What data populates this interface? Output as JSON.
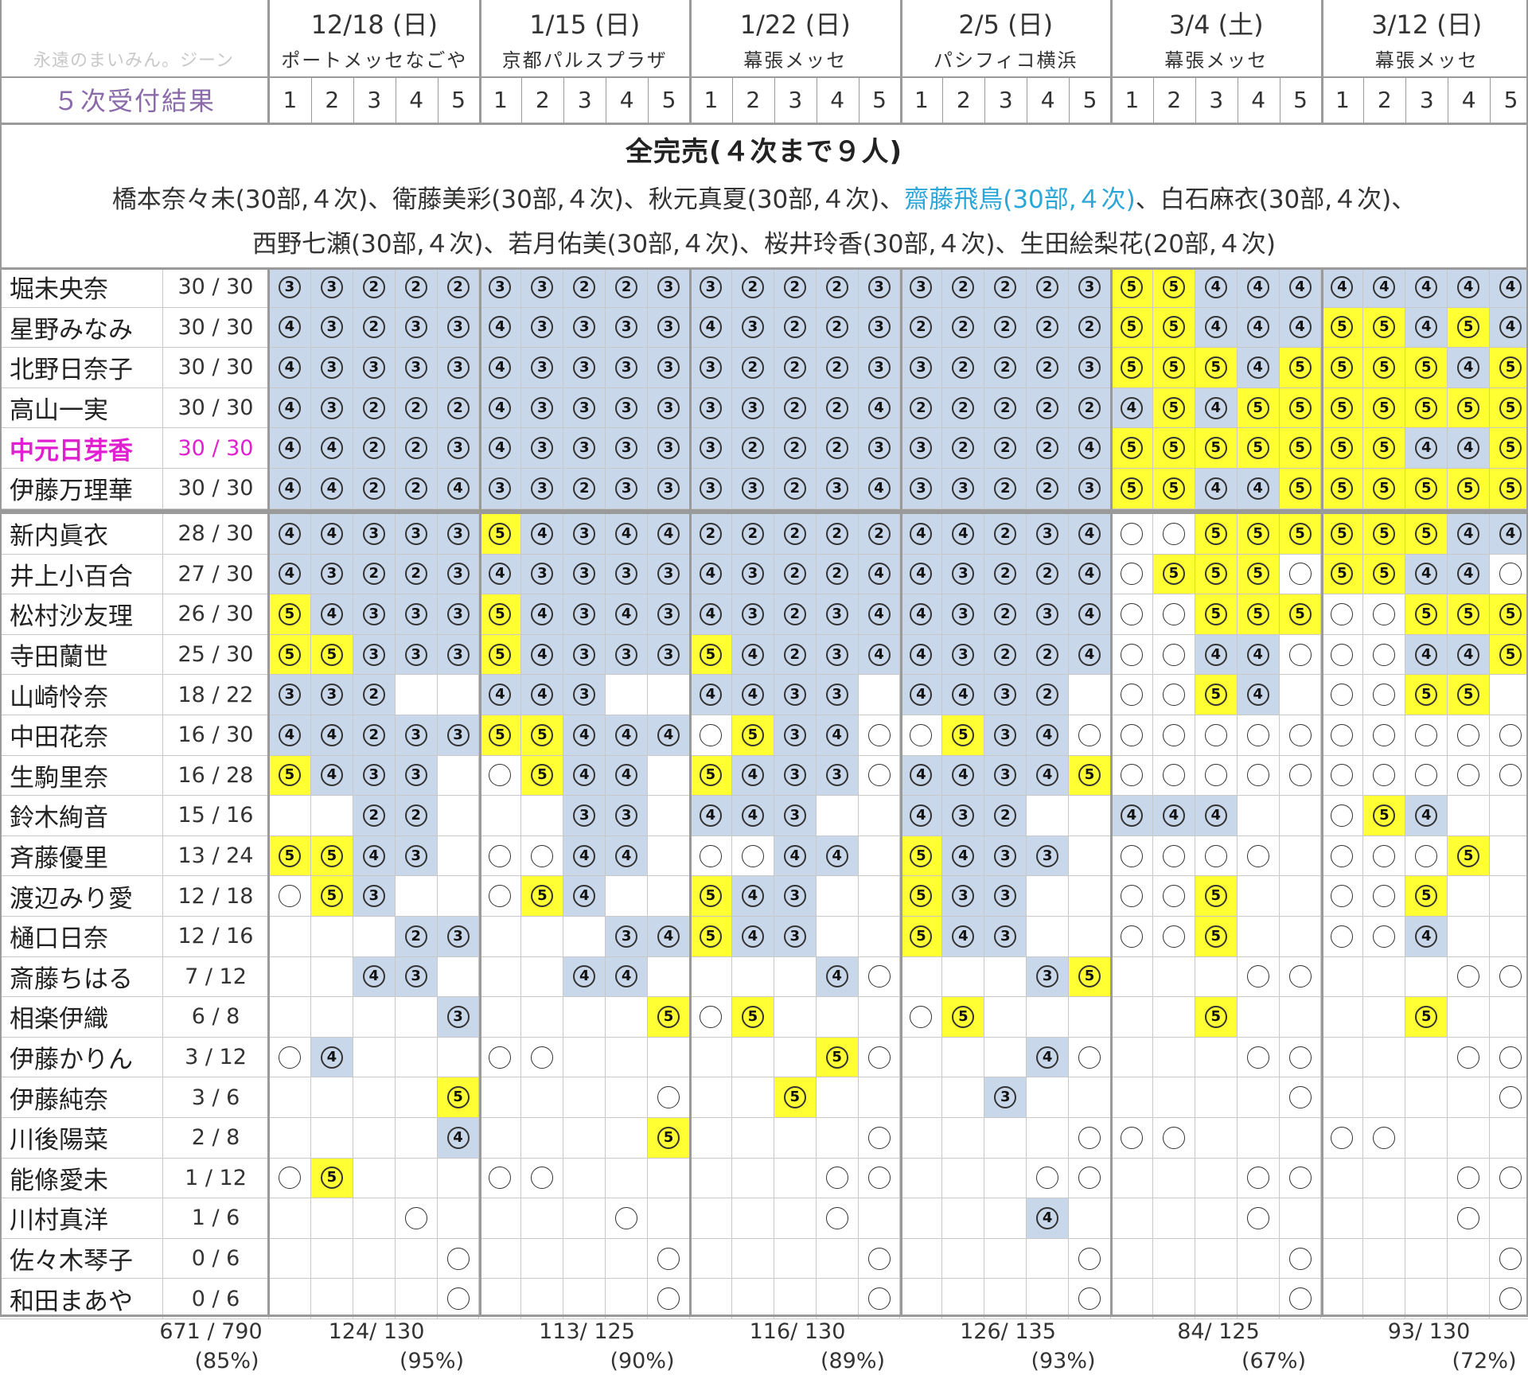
{
  "watermark": "永遠のまいみん。ジーン",
  "header_label": "５次受付結果",
  "events": [
    {
      "date": "12/18 (日)",
      "venue": "ポートメッセなごや"
    },
    {
      "date": "1/15 (日)",
      "venue": "京都パルスプラザ"
    },
    {
      "date": "1/22 (日)",
      "venue": "幕張メッセ"
    },
    {
      "date": "2/5 (日)",
      "venue": "パシフィコ横浜"
    },
    {
      "date": "3/4 (土)",
      "venue": "幕張メッセ"
    },
    {
      "date": "3/12 (日)",
      "venue": "幕張メッセ"
    }
  ],
  "slot_numbers": [
    "1",
    "2",
    "3",
    "4",
    "5"
  ],
  "soldout": {
    "title": "全完売(４次まで９人)",
    "line1": [
      {
        "text": "橋本奈々未(30部,４次)、衛藤美彩(30部,４次)、秋元真夏(30部,４次)、",
        "color": "#333333"
      },
      {
        "text": "齋藤飛鳥(30部,４次)",
        "color": "#2aa6d8"
      },
      {
        "text": "、白石麻衣(30部,４次)、",
        "color": "#333333"
      }
    ],
    "line2": "西野七瀬(30部,４次)、若月佑美(30部,４次)、桜井玲香(30部,４次)、生田絵梨花(20部,４次)"
  },
  "colors": {
    "blue": "#c9d7ea",
    "yellow": "#ffff33",
    "highlight": "#e020d0"
  },
  "rows": [
    {
      "name": "堀未央奈",
      "score": "30 / 30",
      "cells": [
        "3b",
        "3b",
        "2b",
        "2b",
        "2b",
        "3b",
        "3b",
        "2b",
        "2b",
        "3b",
        "3b",
        "2b",
        "2b",
        "2b",
        "3b",
        "3b",
        "2b",
        "2b",
        "2b",
        "3b",
        "5y",
        "5y",
        "4b",
        "4b",
        "4b",
        "4b",
        "4b",
        "4b",
        "4b",
        "4b"
      ]
    },
    {
      "name": "星野みなみ",
      "score": "30 / 30",
      "cells": [
        "4b",
        "3b",
        "2b",
        "3b",
        "3b",
        "4b",
        "3b",
        "3b",
        "3b",
        "3b",
        "4b",
        "3b",
        "2b",
        "2b",
        "3b",
        "2b",
        "2b",
        "2b",
        "2b",
        "2b",
        "5y",
        "5y",
        "4b",
        "4b",
        "4b",
        "5y",
        "5y",
        "4b",
        "5y",
        "4b"
      ]
    },
    {
      "name": "北野日奈子",
      "score": "30 / 30",
      "cells": [
        "4b",
        "3b",
        "3b",
        "3b",
        "3b",
        "4b",
        "3b",
        "3b",
        "3b",
        "3b",
        "3b",
        "2b",
        "2b",
        "2b",
        "3b",
        "3b",
        "2b",
        "2b",
        "2b",
        "3b",
        "5y",
        "5y",
        "5y",
        "4b",
        "5y",
        "5y",
        "5y",
        "5y",
        "4b",
        "5y"
      ]
    },
    {
      "name": "高山一実",
      "score": "30 / 30",
      "cells": [
        "4b",
        "3b",
        "2b",
        "2b",
        "2b",
        "4b",
        "3b",
        "3b",
        "3b",
        "3b",
        "3b",
        "3b",
        "2b",
        "2b",
        "4b",
        "2b",
        "2b",
        "2b",
        "2b",
        "2b",
        "4b",
        "5y",
        "4b",
        "5y",
        "5y",
        "5y",
        "5y",
        "5y",
        "5y",
        "5y"
      ]
    },
    {
      "name": "中元日芽香",
      "score": "30 / 30",
      "highlight": true,
      "cells": [
        "4b",
        "4b",
        "2b",
        "2b",
        "3b",
        "4b",
        "3b",
        "3b",
        "3b",
        "3b",
        "3b",
        "2b",
        "2b",
        "2b",
        "3b",
        "3b",
        "2b",
        "2b",
        "2b",
        "4b",
        "5y",
        "5y",
        "5y",
        "5y",
        "5y",
        "5y",
        "5y",
        "4b",
        "4b",
        "5y"
      ]
    },
    {
      "name": "伊藤万理華",
      "score": "30 / 30",
      "cells": [
        "4b",
        "4b",
        "2b",
        "2b",
        "4b",
        "3b",
        "3b",
        "2b",
        "3b",
        "3b",
        "3b",
        "3b",
        "2b",
        "3b",
        "4b",
        "3b",
        "3b",
        "2b",
        "2b",
        "3b",
        "5y",
        "5y",
        "4b",
        "4b",
        "5y",
        "5y",
        "5y",
        "5y",
        "5y",
        "5y"
      ]
    },
    {
      "name": "新内眞衣",
      "score": "28 / 30",
      "cells": [
        "4b",
        "4b",
        "3b",
        "3b",
        "3b",
        "5y",
        "4b",
        "3b",
        "4b",
        "4b",
        "2b",
        "2b",
        "2b",
        "2b",
        "2b",
        "4b",
        "4b",
        "2b",
        "3b",
        "4b",
        "o",
        "o",
        "5y",
        "5y",
        "5y",
        "5y",
        "5y",
        "5y",
        "4b",
        "4b"
      ]
    },
    {
      "name": "井上小百合",
      "score": "27 / 30",
      "cells": [
        "4b",
        "3b",
        "2b",
        "2b",
        "3b",
        "4b",
        "3b",
        "3b",
        "3b",
        "3b",
        "4b",
        "3b",
        "2b",
        "2b",
        "4b",
        "4b",
        "3b",
        "2b",
        "2b",
        "4b",
        "o",
        "5y",
        "5y",
        "5y",
        "o",
        "5y",
        "5y",
        "4b",
        "4b",
        "o"
      ]
    },
    {
      "name": "松村沙友理",
      "score": "26 / 30",
      "cells": [
        "5y",
        "4b",
        "3b",
        "3b",
        "3b",
        "5y",
        "4b",
        "3b",
        "4b",
        "3b",
        "4b",
        "3b",
        "2b",
        "3b",
        "4b",
        "4b",
        "3b",
        "2b",
        "3b",
        "4b",
        "o",
        "o",
        "5y",
        "5y",
        "5y",
        "o",
        "o",
        "5y",
        "5y",
        "5y"
      ]
    },
    {
      "name": "寺田蘭世",
      "score": "25 / 30",
      "cells": [
        "5y",
        "5y",
        "3b",
        "3b",
        "3b",
        "5y",
        "4b",
        "3b",
        "3b",
        "3b",
        "5y",
        "4b",
        "2b",
        "3b",
        "4b",
        "4b",
        "3b",
        "2b",
        "2b",
        "4b",
        "o",
        "o",
        "4b",
        "4b",
        "o",
        "o",
        "o",
        "4b",
        "4b",
        "5y"
      ]
    },
    {
      "name": "山崎怜奈",
      "score": "18 / 22",
      "cells": [
        "3b",
        "3b",
        "2b",
        "",
        "",
        "4b",
        "4b",
        "3b",
        "",
        "",
        "4b",
        "4b",
        "3b",
        "3b",
        "",
        "4b",
        "4b",
        "3b",
        "2b",
        "",
        "o",
        "o",
        "5y",
        "4b",
        "",
        "o",
        "o",
        "5y",
        "5y",
        ""
      ]
    },
    {
      "name": "中田花奈",
      "score": "16 / 30",
      "cells": [
        "4b",
        "4b",
        "2b",
        "3b",
        "3b",
        "5y",
        "5y",
        "4b",
        "4b",
        "4b",
        "o",
        "5y",
        "3b",
        "4b",
        "o",
        "o",
        "5y",
        "3b",
        "4b",
        "o",
        "o",
        "o",
        "o",
        "o",
        "o",
        "o",
        "o",
        "o",
        "o",
        "o"
      ]
    },
    {
      "name": "生駒里奈",
      "score": "16 / 28",
      "cells": [
        "5y",
        "4b",
        "3b",
        "3b",
        "",
        "o",
        "5y",
        "4b",
        "4b",
        "",
        "5y",
        "4b",
        "3b",
        "3b",
        "o",
        "4b",
        "4b",
        "3b",
        "4b",
        "5y",
        "o",
        "o",
        "o",
        "o",
        "o",
        "o",
        "o",
        "o",
        "o",
        "o"
      ]
    },
    {
      "name": "鈴木絢音",
      "score": "15 / 16",
      "cells": [
        "",
        "",
        "2b",
        "2b",
        "",
        "",
        "",
        "3b",
        "3b",
        "",
        "4b",
        "4b",
        "3b",
        "",
        "",
        "4b",
        "3b",
        "2b",
        "",
        "",
        "4b",
        "4b",
        "4b",
        "",
        "",
        "o",
        "5y",
        "4b",
        "",
        ""
      ]
    },
    {
      "name": "斉藤優里",
      "score": "13 / 24",
      "cells": [
        "5y",
        "5y",
        "4b",
        "3b",
        "",
        "o",
        "o",
        "4b",
        "4b",
        "",
        "o",
        "o",
        "4b",
        "4b",
        "",
        "5y",
        "4b",
        "3b",
        "3b",
        "",
        "o",
        "o",
        "o",
        "o",
        "",
        "o",
        "o",
        "o",
        "5y",
        ""
      ]
    },
    {
      "name": "渡辺みり愛",
      "score": "12 / 18",
      "cells": [
        "o",
        "5y",
        "3b",
        "",
        "",
        "o",
        "5y",
        "4b",
        "",
        "",
        "5y",
        "4b",
        "3b",
        "",
        "",
        "5y",
        "3b",
        "3b",
        "",
        "",
        "o",
        "o",
        "5y",
        "",
        "",
        "o",
        "o",
        "5y",
        "",
        ""
      ]
    },
    {
      "name": "樋口日奈",
      "score": "12 / 16",
      "cells": [
        "",
        "",
        "",
        "2b",
        "3b",
        "",
        "",
        "",
        "3b",
        "4b",
        "5y",
        "4b",
        "3b",
        "",
        "",
        "5y",
        "4b",
        "3b",
        "",
        "",
        "o",
        "o",
        "5y",
        "",
        "",
        "o",
        "o",
        "4b",
        "",
        ""
      ]
    },
    {
      "name": "斎藤ちはる",
      "score": "7 / 12",
      "cells": [
        "",
        "",
        "4b",
        "3b",
        "",
        "",
        "",
        "4b",
        "4b",
        "",
        "",
        "",
        "",
        "4b",
        "o",
        "",
        "",
        "",
        "3b",
        "5y",
        "",
        "",
        "",
        "o",
        "o",
        "",
        "",
        "",
        "o",
        "o"
      ]
    },
    {
      "name": "相楽伊織",
      "score": "6 / 8",
      "cells": [
        "",
        "",
        "",
        "",
        "3b",
        "",
        "",
        "",
        "",
        "5y",
        "o",
        "5y",
        "",
        "",
        "",
        "o",
        "5y",
        "",
        "",
        "",
        "",
        "",
        "5y",
        "",
        "",
        "",
        "",
        "5y",
        "",
        ""
      ]
    },
    {
      "name": "伊藤かりん",
      "score": "3 / 12",
      "cells": [
        "o",
        "4b",
        "",
        "",
        "",
        "o",
        "o",
        "",
        "",
        "",
        "",
        "",
        "",
        "5y",
        "o",
        "",
        "",
        "",
        "4b",
        "o",
        "",
        "",
        "",
        "o",
        "o",
        "",
        "",
        "",
        "o",
        "o"
      ]
    },
    {
      "name": "伊藤純奈",
      "score": "3 / 6",
      "cells": [
        "",
        "",
        "",
        "",
        "5y",
        "",
        "",
        "",
        "",
        "o",
        "",
        "",
        "5y",
        "",
        "",
        "",
        "",
        "3b",
        "",
        "",
        "",
        "",
        "",
        "",
        "o",
        "",
        "",
        "",
        "",
        "o"
      ]
    },
    {
      "name": "川後陽菜",
      "score": "2 / 8",
      "cells": [
        "",
        "",
        "",
        "",
        "4b",
        "",
        "",
        "",
        "",
        "5y",
        "",
        "",
        "",
        "",
        "o",
        "",
        "",
        "",
        "",
        "o",
        "o",
        "o",
        "",
        "",
        "",
        "o",
        "o",
        "",
        "",
        ""
      ]
    },
    {
      "name": "能條愛未",
      "score": "1 / 12",
      "cells": [
        "o",
        "5y",
        "",
        "",
        "",
        "o",
        "o",
        "",
        "",
        "",
        "",
        "",
        "",
        "o",
        "o",
        "",
        "",
        "",
        "o",
        "o",
        "",
        "",
        "",
        "o",
        "o",
        "",
        "",
        "",
        "o",
        "o"
      ]
    },
    {
      "name": "川村真洋",
      "score": "1 / 6",
      "cells": [
        "",
        "",
        "",
        "o",
        "",
        "",
        "",
        "",
        "o",
        "",
        "",
        "",
        "",
        "o",
        "",
        "",
        "",
        "",
        "4b",
        "",
        "",
        "",
        "",
        "o",
        "",
        "",
        "",
        "",
        "o",
        ""
      ]
    },
    {
      "name": "佐々木琴子",
      "score": "0 / 6",
      "cells": [
        "",
        "",
        "",
        "",
        "o",
        "",
        "",
        "",
        "",
        "o",
        "",
        "",
        "",
        "",
        "o",
        "",
        "",
        "",
        "",
        "o",
        "",
        "",
        "",
        "",
        "o",
        "",
        "",
        "",
        "",
        "o"
      ]
    },
    {
      "name": "和田まあや",
      "score": "0 / 6",
      "cells": [
        "",
        "",
        "",
        "",
        "o",
        "",
        "",
        "",
        "",
        "o",
        "",
        "",
        "",
        "",
        "o",
        "",
        "",
        "",
        "",
        "o",
        "",
        "",
        "",
        "",
        "o",
        "",
        "",
        "",
        "",
        "o"
      ]
    }
  ],
  "totals": {
    "overall": "671 / 790",
    "overall_pct": "(85%)",
    "per_event": [
      {
        "count": "124/ 130",
        "pct": "(95%)"
      },
      {
        "count": "113/ 125",
        "pct": "(90%)"
      },
      {
        "count": "116/ 130",
        "pct": "(89%)"
      },
      {
        "count": "126/ 135",
        "pct": "(93%)"
      },
      {
        "count": "84/ 125",
        "pct": "(67%)"
      },
      {
        "count": "93/ 130",
        "pct": "(72%)"
      }
    ]
  }
}
